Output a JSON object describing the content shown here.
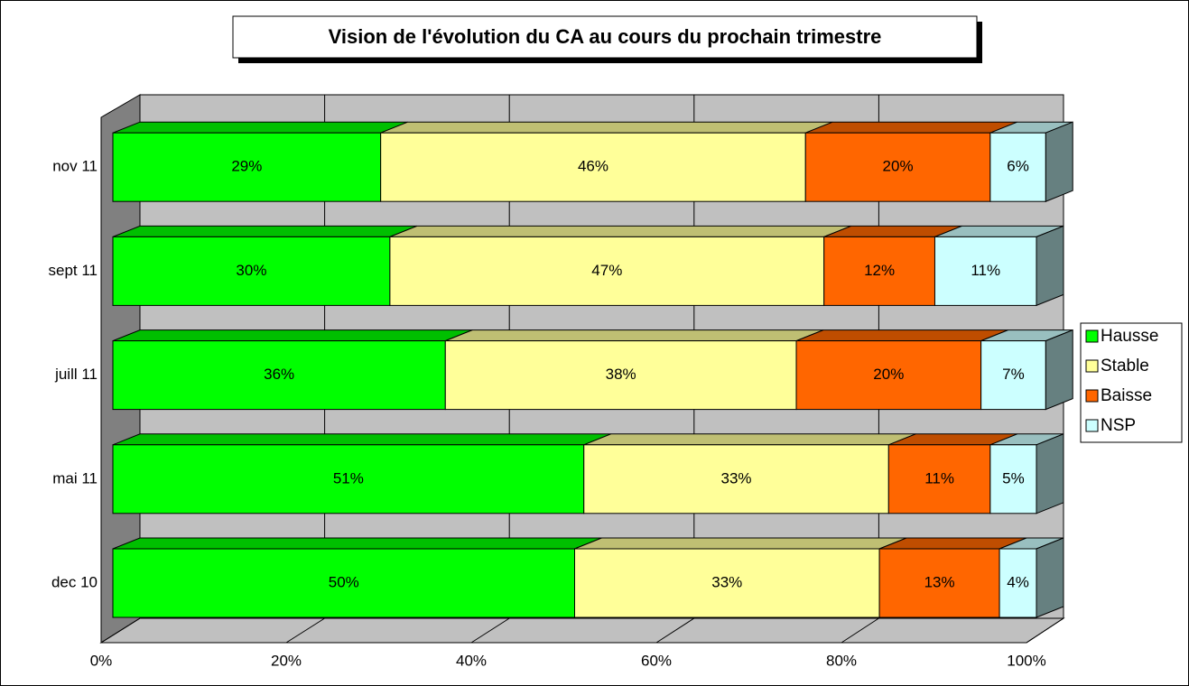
{
  "chart_data": {
    "type": "bar3d_stacked_h",
    "title": "Vision de l'évolution du CA au cours du prochain trimestre",
    "categories": [
      "dec 10",
      "mai 11",
      "juill 11",
      "sept 11",
      "nov 11"
    ],
    "series": [
      {
        "name": "Hausse",
        "color": "#00ff00",
        "values": [
          50,
          51,
          36,
          30,
          29
        ],
        "value_labels": [
          "50%",
          "51%",
          "36%",
          "30%",
          "29%"
        ]
      },
      {
        "name": "Stable",
        "color": "#ffff99",
        "values": [
          33,
          33,
          38,
          47,
          46
        ],
        "value_labels": [
          "33%",
          "33%",
          "38%",
          "47%",
          "46%"
        ]
      },
      {
        "name": "Baisse",
        "color": "#ff6600",
        "values": [
          13,
          11,
          20,
          12,
          20
        ],
        "value_labels": [
          "13%",
          "11%",
          "20%",
          "12%",
          "20%"
        ]
      },
      {
        "name": "NSP",
        "color": "#ccffff",
        "values": [
          4,
          5,
          7,
          11,
          6
        ],
        "value_labels": [
          "4%",
          "5%",
          "7%",
          "11%",
          "6%"
        ]
      }
    ],
    "xlim": [
      0,
      100
    ],
    "xticks": [
      {
        "value": 0,
        "label": "0%"
      },
      {
        "value": 20,
        "label": "20%"
      },
      {
        "value": 40,
        "label": "40%"
      },
      {
        "value": 60,
        "label": "60%"
      },
      {
        "value": 80,
        "label": "80%"
      },
      {
        "value": 100,
        "label": "100%"
      }
    ],
    "grid": true,
    "legend": "right"
  }
}
